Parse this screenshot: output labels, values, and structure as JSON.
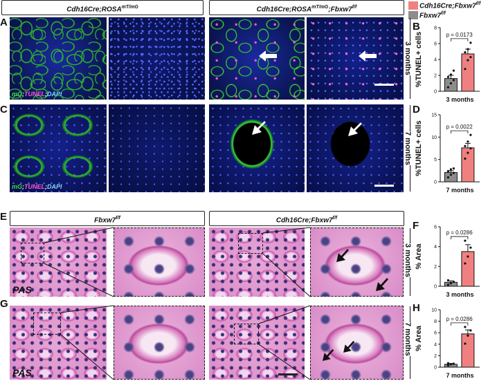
{
  "headers": {
    "top_left": "Cdh16Cre;ROSA",
    "top_left_sup": "mT/mG",
    "top_right": "Cdh16Cre;ROSA",
    "top_right_sup": "mT/mG",
    "top_right_suffix": ";Fbxw7",
    "top_right_suffix_sup": "f/f",
    "bottom_left": "Fbxw7",
    "bottom_left_sup": "f/f",
    "bottom_right": "Cdh16Cre;Fbxw7",
    "bottom_right_sup": "f/f"
  },
  "legend": {
    "items": [
      {
        "label": "Cdh16Cre;Fbxw7",
        "sup": "f/f",
        "color": "#f08080"
      },
      {
        "label": "Fbxw7",
        "sup": "f/f",
        "color": "#8c8c8c"
      }
    ]
  },
  "panel_letters": [
    "A",
    "B",
    "C",
    "D",
    "E",
    "F",
    "G",
    "H"
  ],
  "timepoints": {
    "row_a": "3 months",
    "row_c": "7 months",
    "row_e": "3 months",
    "row_g": "7 months"
  },
  "stain_label": {
    "mg": "mG",
    "tunel": "TUNEL",
    "dapi": "DAPI",
    "sep": ";"
  },
  "pas_label": "PAS",
  "colors": {
    "control": "#8c8c8c",
    "ko": "#f08080"
  },
  "chart_data": [
    {
      "panel": "B",
      "type": "bar",
      "categories": [
        "Fbxw7f/f",
        "Cdh16Cre;Fbxw7f/f"
      ],
      "values": [
        1.6,
        4.7
      ],
      "errors": [
        0.4,
        0.6
      ],
      "points": [
        [
          0.5,
          1.0,
          1.4,
          1.8,
          2.1,
          2.6
        ],
        [
          2.8,
          3.9,
          4.3,
          4.9,
          5.3,
          6.1
        ]
      ],
      "ylabel": "%TUNEL+ cells",
      "xlabel": "3 months",
      "ylim": [
        0,
        8
      ],
      "yticks": [
        0,
        2,
        4,
        6,
        8
      ],
      "annotation": "p = 0.0173"
    },
    {
      "panel": "D",
      "type": "bar",
      "categories": [
        "Fbxw7f/f",
        "Cdh16Cre;Fbxw7f/f"
      ],
      "values": [
        2.1,
        7.6
      ],
      "errors": [
        0.4,
        1.0
      ],
      "points": [
        [
          1.0,
          1.6,
          2.0,
          2.4,
          2.8,
          3.0
        ],
        [
          5.2,
          6.5,
          7.5,
          8.0,
          9.0,
          10.5
        ]
      ],
      "ylabel": "%TUNEL+ cells",
      "xlabel": "7 months",
      "ylim": [
        0,
        15
      ],
      "yticks": [
        0,
        5,
        10,
        15
      ],
      "annotation": "p = 0.0022"
    },
    {
      "panel": "F",
      "type": "bar",
      "categories": [
        "Fbxw7f/f",
        "Cdh16Cre;Fbxw7f/f"
      ],
      "values": [
        0.4,
        3.5
      ],
      "errors": [
        0.15,
        0.7
      ],
      "points": [
        [
          0.15,
          0.3,
          0.45,
          0.6
        ],
        [
          2.3,
          3.0,
          3.9,
          4.6
        ]
      ],
      "ylabel": "% Area",
      "xlabel": "3 months",
      "ylim": [
        0,
        6
      ],
      "yticks": [
        0,
        2,
        4,
        6
      ],
      "annotation": "p = 0.0286"
    },
    {
      "panel": "H",
      "type": "bar",
      "categories": [
        "Fbxw7f/f",
        "Cdh16Cre;Fbxw7f/f"
      ],
      "values": [
        0.5,
        5.8
      ],
      "errors": [
        0.15,
        0.7
      ],
      "points": [
        [
          0.3,
          0.5,
          0.6,
          0.7
        ],
        [
          4.1,
          5.5,
          6.4,
          7.0
        ]
      ],
      "ylabel": "% Area",
      "xlabel": "7 months",
      "ylim": [
        0,
        10
      ],
      "yticks": [
        0,
        2,
        4,
        6,
        8,
        10
      ],
      "annotation": "p = 0.0286"
    }
  ]
}
